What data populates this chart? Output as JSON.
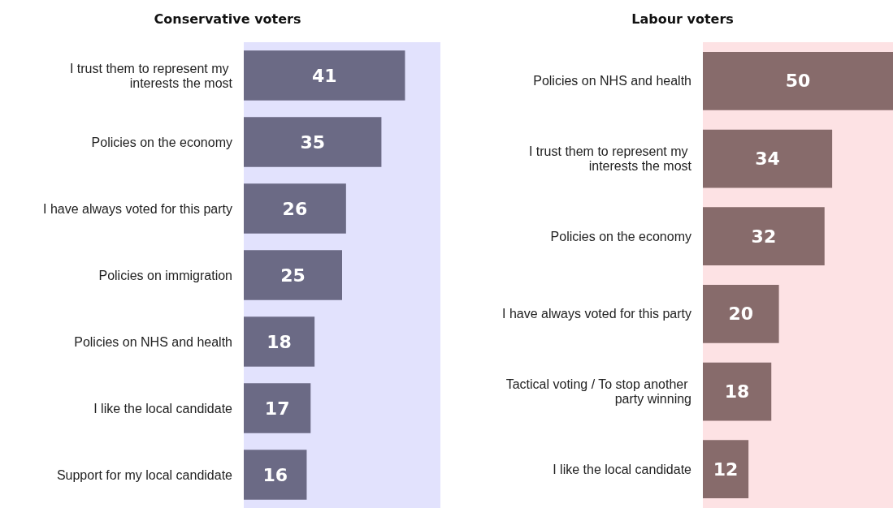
{
  "chart_data": [
    {
      "type": "bar",
      "title": "Conservative voters",
      "orientation": "horizontal",
      "categories": [
        "I trust them to represent my interests the most",
        "Policies on the economy",
        "I have always voted for this party",
        "Policies on immigration",
        "Policies on NHS and health",
        "I like the local candidate",
        "Support for my local candidate"
      ],
      "values": [
        41,
        35,
        26,
        25,
        18,
        17,
        16
      ],
      "color": "#6b6a85",
      "xlim": [
        0,
        50
      ],
      "tick_labels": "y",
      "data_labels": true,
      "bands": [
        {
          "axis": "x",
          "from": 0,
          "to": 50,
          "color": "#e2e2fd"
        }
      ]
    },
    {
      "type": "bar",
      "title": "Labour voters",
      "orientation": "horizontal",
      "categories": [
        "Policies on NHS and health",
        "I trust them to represent my interests the most",
        "Policies on the economy",
        "I have always voted for this party",
        "Tactical voting / To stop another party winning",
        "I like the local candidate"
      ],
      "values": [
        50,
        34,
        32,
        20,
        18,
        12
      ],
      "color": "#876b6b",
      "xlim": [
        0,
        50
      ],
      "tick_labels": "y",
      "data_labels": true,
      "bands": [
        {
          "axis": "x",
          "from": 0,
          "to": 50,
          "color": "#fde2e4"
        }
      ]
    }
  ]
}
